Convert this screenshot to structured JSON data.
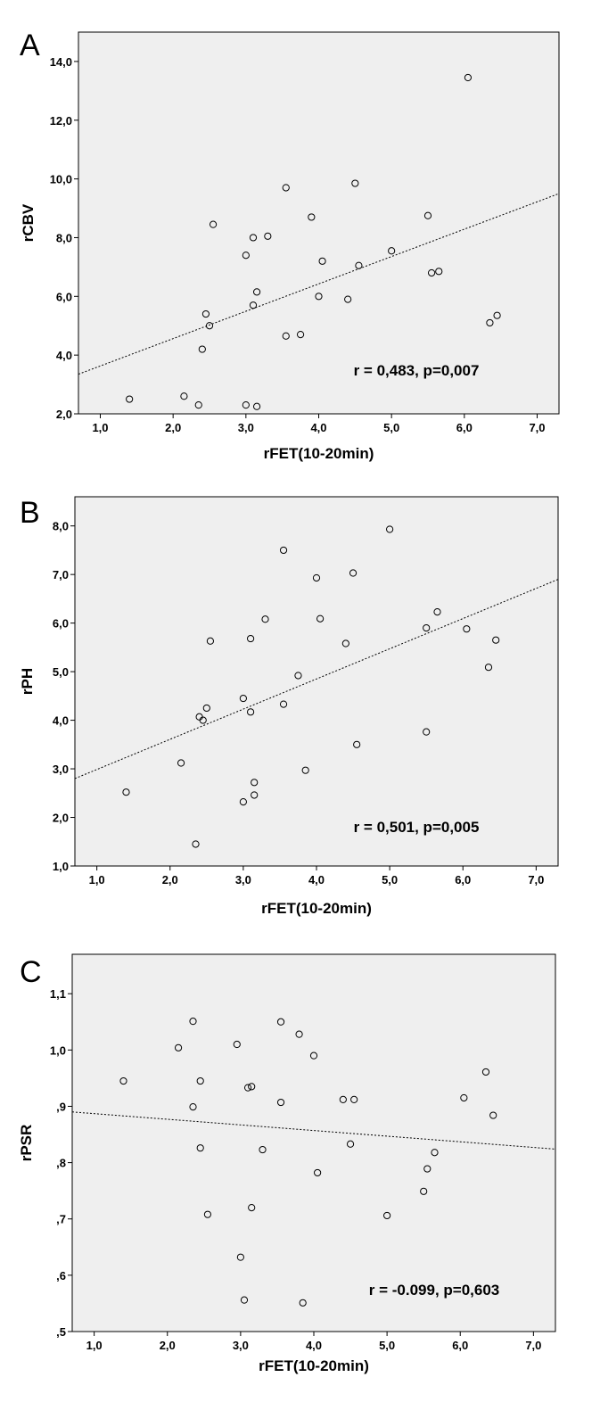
{
  "chart_data": [
    {
      "type": "scatter",
      "panel_label": "A",
      "xlabel": "rFET(10-20min)",
      "ylabel": "rCBV",
      "xlim": [
        0.7,
        7.3
      ],
      "ylim": [
        2.0,
        15.0
      ],
      "x_ticks": [
        1.0,
        2.0,
        3.0,
        4.0,
        5.0,
        6.0,
        7.0
      ],
      "x_tick_labels": [
        "1,0",
        "2,0",
        "3,0",
        "4,0",
        "5,0",
        "6,0",
        "7,0"
      ],
      "y_ticks": [
        2.0,
        4.0,
        6.0,
        8.0,
        10.0,
        12.0,
        14.0
      ],
      "y_tick_labels": [
        "2,0",
        "4,0",
        "6,0",
        "8,0",
        "10,0",
        "12,0",
        "14,0"
      ],
      "annotation": "r = 0,483, p=0,007",
      "trendline": [
        [
          0.7,
          3.35
        ],
        [
          7.3,
          9.5
        ]
      ],
      "points": [
        [
          1.4,
          2.5
        ],
        [
          2.15,
          2.6
        ],
        [
          2.35,
          2.3
        ],
        [
          2.4,
          4.2
        ],
        [
          2.45,
          5.4
        ],
        [
          2.5,
          5.0
        ],
        [
          2.55,
          8.45
        ],
        [
          3.0,
          2.3
        ],
        [
          3.0,
          7.4
        ],
        [
          3.1,
          5.7
        ],
        [
          3.1,
          8.0
        ],
        [
          3.15,
          6.15
        ],
        [
          3.15,
          2.25
        ],
        [
          3.3,
          8.05
        ],
        [
          3.55,
          4.65
        ],
        [
          3.55,
          9.7
        ],
        [
          3.75,
          4.7
        ],
        [
          3.9,
          8.7
        ],
        [
          4.0,
          6.0
        ],
        [
          4.05,
          7.2
        ],
        [
          4.4,
          5.9
        ],
        [
          4.5,
          9.85
        ],
        [
          4.55,
          7.05
        ],
        [
          5.0,
          7.55
        ],
        [
          5.5,
          8.75
        ],
        [
          5.55,
          6.8
        ],
        [
          5.65,
          6.85
        ],
        [
          6.05,
          13.45
        ],
        [
          6.35,
          5.1
        ],
        [
          6.45,
          5.35
        ]
      ]
    },
    {
      "type": "scatter",
      "panel_label": "B",
      "xlabel": "rFET(10-20min)",
      "ylabel": "rPH",
      "xlim": [
        0.7,
        7.3
      ],
      "ylim": [
        1.0,
        8.6
      ],
      "x_ticks": [
        1.0,
        2.0,
        3.0,
        4.0,
        5.0,
        6.0,
        7.0
      ],
      "x_tick_labels": [
        "1,0",
        "2,0",
        "3,0",
        "4,0",
        "5,0",
        "6,0",
        "7,0"
      ],
      "y_ticks": [
        1.0,
        2.0,
        3.0,
        4.0,
        5.0,
        6.0,
        7.0,
        8.0
      ],
      "y_tick_labels": [
        "1,0",
        "2,0",
        "3,0",
        "4,0",
        "5,0",
        "6,0",
        "7,0",
        "8,0"
      ],
      "annotation": "r = 0,501, p=0,005",
      "trendline": [
        [
          0.7,
          2.8
        ],
        [
          7.3,
          6.9
        ]
      ],
      "points": [
        [
          1.4,
          2.52
        ],
        [
          2.15,
          3.12
        ],
        [
          2.35,
          1.45
        ],
        [
          2.4,
          4.07
        ],
        [
          2.45,
          4.0
        ],
        [
          2.5,
          4.25
        ],
        [
          2.55,
          5.63
        ],
        [
          3.0,
          2.32
        ],
        [
          3.0,
          4.45
        ],
        [
          3.1,
          4.17
        ],
        [
          3.1,
          5.68
        ],
        [
          3.15,
          2.72
        ],
        [
          3.15,
          2.46
        ],
        [
          3.3,
          6.08
        ],
        [
          3.55,
          4.33
        ],
        [
          3.55,
          7.5
        ],
        [
          3.75,
          4.92
        ],
        [
          3.85,
          2.97
        ],
        [
          4.0,
          6.93
        ],
        [
          4.05,
          6.09
        ],
        [
          4.4,
          5.58
        ],
        [
          4.5,
          7.03
        ],
        [
          4.55,
          3.5
        ],
        [
          5.0,
          7.93
        ],
        [
          5.5,
          5.9
        ],
        [
          5.5,
          3.76
        ],
        [
          5.65,
          6.23
        ],
        [
          6.05,
          5.88
        ],
        [
          6.35,
          5.09
        ],
        [
          6.45,
          5.65
        ]
      ]
    },
    {
      "type": "scatter",
      "panel_label": "C",
      "xlabel": "rFET(10-20min)",
      "ylabel": "rPSR",
      "xlim": [
        0.7,
        7.3
      ],
      "ylim": [
        0.5,
        1.17
      ],
      "x_ticks": [
        1.0,
        2.0,
        3.0,
        4.0,
        5.0,
        6.0,
        7.0
      ],
      "x_tick_labels": [
        "1,0",
        "2,0",
        "3,0",
        "4,0",
        "5,0",
        "6,0",
        "7,0"
      ],
      "y_ticks": [
        0.5,
        0.6,
        0.7,
        0.8,
        0.9,
        1.0,
        1.1
      ],
      "y_tick_labels": [
        ",5",
        ",6",
        ",7",
        ",8",
        ",9",
        "1,0",
        "1,1"
      ],
      "annotation": "r = -0.099, p=0,603",
      "trendline": [
        [
          0.7,
          0.89
        ],
        [
          7.3,
          0.824
        ]
      ],
      "points": [
        [
          1.4,
          0.945
        ],
        [
          2.15,
          1.004
        ],
        [
          2.35,
          1.051
        ],
        [
          2.35,
          0.899
        ],
        [
          2.45,
          0.945
        ],
        [
          2.45,
          0.826
        ],
        [
          2.55,
          0.708
        ],
        [
          2.95,
          1.01
        ],
        [
          3.0,
          0.632
        ],
        [
          3.05,
          0.556
        ],
        [
          3.1,
          0.933
        ],
        [
          3.15,
          0.935
        ],
        [
          3.15,
          0.72
        ],
        [
          3.3,
          0.823
        ],
        [
          3.55,
          1.05
        ],
        [
          3.55,
          0.907
        ],
        [
          3.8,
          1.028
        ],
        [
          3.85,
          0.551
        ],
        [
          4.0,
          0.99
        ],
        [
          4.05,
          0.782
        ],
        [
          4.4,
          0.912
        ],
        [
          4.5,
          0.833
        ],
        [
          4.55,
          0.912
        ],
        [
          5.0,
          0.706
        ],
        [
          5.5,
          0.749
        ],
        [
          5.55,
          0.789
        ],
        [
          5.65,
          0.818
        ],
        [
          6.05,
          0.915
        ],
        [
          6.35,
          0.961
        ],
        [
          6.45,
          0.884
        ]
      ]
    }
  ]
}
